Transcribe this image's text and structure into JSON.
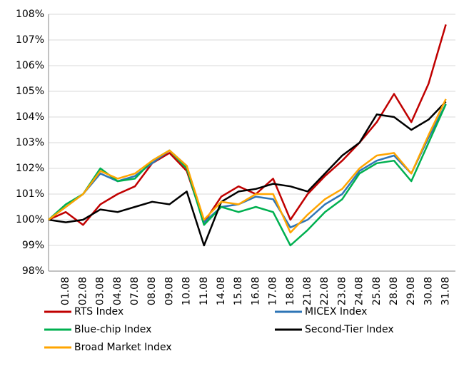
{
  "chart_data": {
    "type": "line",
    "categories": [
      null,
      "01.08",
      "02.08",
      "03.08",
      "04.08",
      "07.08",
      "08.08",
      "09.08",
      "10.08",
      "11.08",
      "14.08",
      "15.08",
      "16.08",
      "17.08",
      "18.08",
      "21.08",
      "22.08",
      "23.08",
      "24.08",
      "25.08",
      "28.08",
      "29.08",
      "30.08",
      "31.08"
    ],
    "series": [
      {
        "name": "RTS Index",
        "color": "#c00000",
        "values": [
          100,
          100.3,
          99.8,
          100.6,
          101.0,
          101.3,
          102.2,
          102.6,
          101.9,
          99.9,
          100.9,
          101.3,
          101.0,
          101.6,
          100.0,
          101.0,
          101.7,
          102.3,
          103.0,
          103.8,
          104.9,
          103.8,
          105.3,
          107.6
        ]
      },
      {
        "name": "MICEX Index",
        "color": "#2e75b6",
        "values": [
          100,
          100.5,
          101.0,
          101.8,
          101.5,
          101.7,
          102.2,
          102.7,
          102.1,
          99.9,
          100.5,
          100.6,
          100.9,
          100.8,
          99.7,
          100.0,
          100.6,
          101.0,
          101.9,
          102.3,
          102.5,
          101.8,
          103.2,
          104.5
        ]
      },
      {
        "name": "Blue-chip Index",
        "color": "#00b050",
        "values": [
          100,
          100.6,
          101.0,
          102.0,
          101.5,
          101.6,
          102.3,
          102.7,
          102.0,
          99.8,
          100.5,
          100.3,
          100.5,
          100.3,
          99.0,
          99.6,
          100.3,
          100.8,
          101.8,
          102.2,
          102.3,
          101.5,
          103.0,
          104.5
        ]
      },
      {
        "name": "Second-Tier Index",
        "color": "#000000",
        "values": [
          100,
          99.9,
          100.0,
          100.4,
          100.3,
          100.5,
          100.7,
          100.6,
          101.1,
          99.0,
          100.7,
          101.1,
          101.2,
          101.4,
          101.3,
          101.1,
          101.8,
          102.5,
          103.0,
          104.1,
          104.0,
          103.5,
          103.9,
          104.6
        ]
      },
      {
        "name": "Broad Market Index",
        "color": "#ffa500",
        "values": [
          100,
          100.5,
          101.0,
          101.9,
          101.6,
          101.8,
          102.3,
          102.7,
          102.1,
          100.0,
          100.7,
          100.6,
          101.0,
          101.0,
          99.5,
          100.2,
          100.8,
          101.2,
          102.0,
          102.5,
          102.6,
          101.8,
          103.3,
          104.7
        ]
      }
    ],
    "ylim": [
      98,
      108
    ],
    "yticks": [
      {
        "value": 98,
        "label": "98%"
      },
      {
        "value": 99,
        "label": "99%"
      },
      {
        "value": 100,
        "label": "100%"
      },
      {
        "value": 101,
        "label": "101%"
      },
      {
        "value": 102,
        "label": "102%"
      },
      {
        "value": 103,
        "label": "103%"
      },
      {
        "value": 104,
        "label": "104%"
      },
      {
        "value": 105,
        "label": "105%"
      },
      {
        "value": 106,
        "label": "106%"
      },
      {
        "value": 107,
        "label": "107%"
      },
      {
        "value": 108,
        "label": "108%"
      }
    ],
    "grid": true
  }
}
